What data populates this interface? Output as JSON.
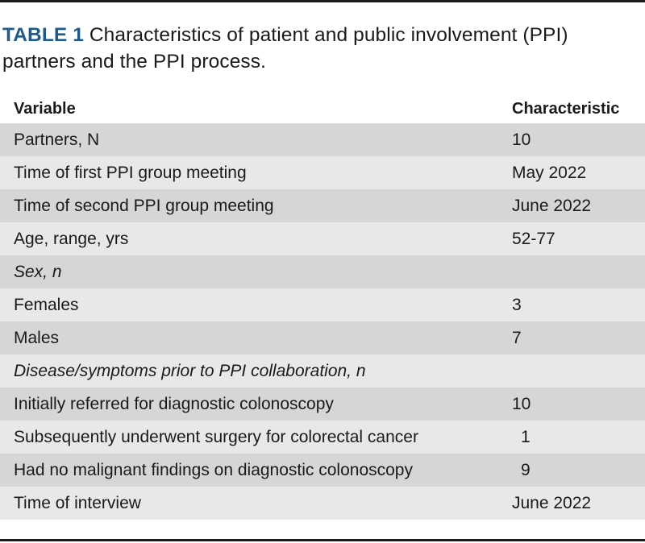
{
  "caption": {
    "label": "TABLE 1",
    "text": " Characteristics of patient and public involvement (PPI) partners and the PPI process."
  },
  "columns": {
    "variable": "Variable",
    "characteristic": "Characteristic"
  },
  "rows": [
    {
      "variable": "Partners, N",
      "characteristic": "10"
    },
    {
      "variable": "Time of first PPI group meeting",
      "characteristic": "May 2022"
    },
    {
      "variable": "Time of second PPI group meeting",
      "characteristic": "June 2022"
    },
    {
      "variable": "Age, range, yrs",
      "characteristic": "52-77"
    },
    {
      "variable": "Sex, n",
      "characteristic": ""
    },
    {
      "variable": "Females",
      "characteristic": "3"
    },
    {
      "variable": "Males",
      "characteristic": "7"
    },
    {
      "variable": "Disease/symptoms prior to PPI collaboration, n",
      "characteristic": ""
    },
    {
      "variable": "Initially referred for diagnostic colonoscopy",
      "characteristic": "10"
    },
    {
      "variable": "Subsequently underwent surgery for colorectal cancer",
      "characteristic": "1"
    },
    {
      "variable": "Had no malignant findings on diagnostic colonoscopy",
      "characteristic": "9"
    },
    {
      "variable": "Time of interview",
      "characteristic": "June 2022"
    }
  ]
}
